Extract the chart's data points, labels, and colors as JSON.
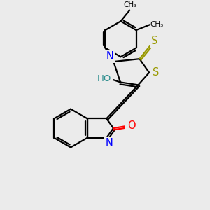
{
  "background_color": "#ebebeb",
  "atom_colors": {
    "N": "#0000ff",
    "O": "#ff0000",
    "S": "#999900",
    "C": "#000000",
    "HO": "#2f8f8f"
  },
  "figsize": [
    3.0,
    3.0
  ],
  "dpi": 100
}
